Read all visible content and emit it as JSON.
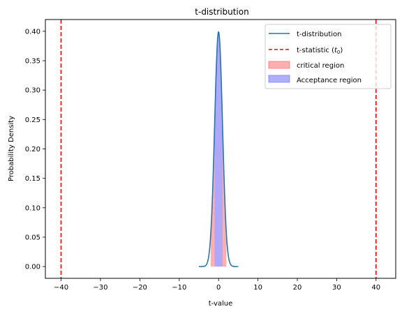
{
  "chart_data": {
    "type": "line",
    "title": "t-distribution",
    "xlabel": "t-value",
    "ylabel": "Probability Density",
    "xlim": [
      -44,
      45
    ],
    "ylim": [
      -0.02,
      0.42
    ],
    "xticks": [
      -40,
      -30,
      -20,
      -10,
      0,
      10,
      20,
      30,
      40
    ],
    "xtick_labels": [
      "−40",
      "−30",
      "−20",
      "−10",
      "0",
      "10",
      "20",
      "30",
      "40"
    ],
    "yticks": [
      0.0,
      0.05,
      0.1,
      0.15,
      0.2,
      0.25,
      0.3,
      0.35,
      0.4
    ],
    "ytick_labels": [
      "0.00",
      "0.05",
      "0.10",
      "0.15",
      "0.20",
      "0.25",
      "0.30",
      "0.35",
      "0.40"
    ],
    "grid": false,
    "legend_position": "top-right",
    "distribution": {
      "name": "t-distribution",
      "color": "#1f77b4",
      "x_range": [
        -5,
        5
      ],
      "peak": 0.399
    },
    "critical_lines": {
      "name": "t-statistic ($t_0$)",
      "legend_prefix": "t-statistic (",
      "legend_symbol": "t",
      "legend_subscript": "0",
      "legend_suffix": ")",
      "color": "#ff0000",
      "x": [
        -40,
        40
      ]
    },
    "regions": [
      {
        "name": "critical region",
        "color": "#ff9999",
        "x_ranges": [
          [
            -2.0,
            2.0
          ]
        ]
      },
      {
        "name": "Acceptance region",
        "color": "#a6a6ff",
        "x_ranges": [
          [
            -1.0,
            1.0
          ]
        ]
      }
    ]
  }
}
